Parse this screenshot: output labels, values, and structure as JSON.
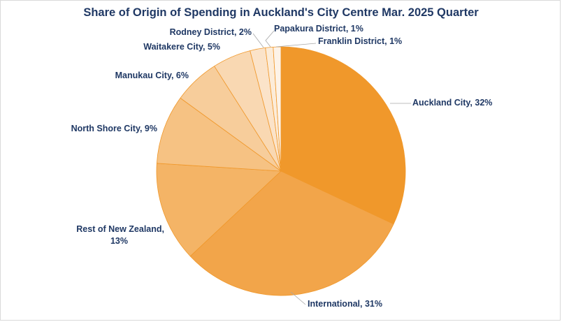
{
  "chart_data": {
    "type": "pie",
    "title": "Share of Origin of Spending in Auckland's City Centre Mar. 2025 Quarter",
    "slices": [
      {
        "label": "Auckland City",
        "value": 32,
        "color": "#f0982b"
      },
      {
        "label": "International",
        "value": 31,
        "color": "#f2a54a"
      },
      {
        "label": "Rest of New Zealand",
        "value": 13,
        "color": "#f4b466"
      },
      {
        "label": "North Shore City",
        "value": 9,
        "color": "#f6c283"
      },
      {
        "label": "Manukau City",
        "value": 6,
        "color": "#f7cd9b"
      },
      {
        "label": "Waitakere City",
        "value": 5,
        "color": "#f9d8b2"
      },
      {
        "label": "Rodney District",
        "value": 2,
        "color": "#fbe3c9"
      },
      {
        "label": "Papakura District",
        "value": 1,
        "color": "#fcecd9"
      },
      {
        "label": "Franklin District",
        "value": 1,
        "color": "#fdf3e8"
      }
    ],
    "data_labels": [
      {
        "lines": [
          "Auckland City, 32%"
        ]
      },
      {
        "lines": [
          "International, 31%"
        ]
      },
      {
        "lines": [
          "Rest of New Zealand,",
          "13%"
        ]
      },
      {
        "lines": [
          "North Shore City, 9%"
        ]
      },
      {
        "lines": [
          "Manukau City, 6%"
        ]
      },
      {
        "lines": [
          "Waitakere City, 5%"
        ]
      },
      {
        "lines": [
          "Rodney District, 2%"
        ]
      },
      {
        "lines": [
          "Papakura District, 1%"
        ]
      },
      {
        "lines": [
          "Franklin District, 1%"
        ]
      }
    ],
    "legend": "none",
    "start": "12 o'clock",
    "direction": "clockwise"
  }
}
